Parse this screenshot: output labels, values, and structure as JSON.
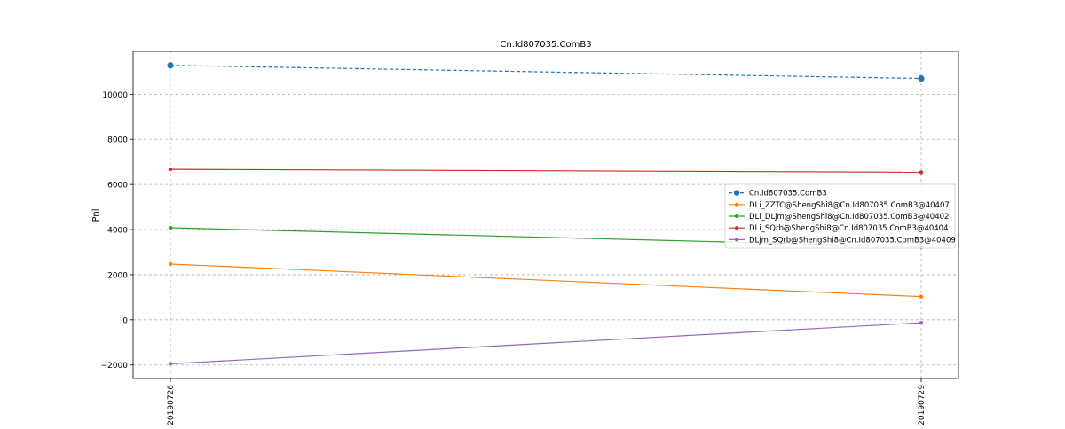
{
  "chart_data": {
    "type": "line",
    "title": "Cn.Id807035.ComB3",
    "xlabel": "",
    "ylabel": "Pnl",
    "categories": [
      "20190726",
      "20190729"
    ],
    "ylim": [
      -2600,
      11900
    ],
    "yticks": [
      -2000,
      0,
      2000,
      4000,
      6000,
      8000,
      10000
    ],
    "ytick_labels": [
      "−2000",
      "0",
      "2000",
      "4000",
      "6000",
      "8000",
      "10000"
    ],
    "grid": true,
    "legend_position": "center-right",
    "series": [
      {
        "name": "Cn.Id807035.ComB3",
        "values": [
          11280,
          10700
        ],
        "color": "#1f77b4",
        "dashed": true,
        "marker": "large-dot"
      },
      {
        "name": "DLi_ZZTC@ShengShi8@Cn.Id807035.ComB3@40407",
        "values": [
          2470,
          1030
        ],
        "color": "#ff7f0e",
        "dashed": false,
        "marker": "dot"
      },
      {
        "name": "DLi_DLjm@ShengShi8@Cn.Id807035.ComB3@40402",
        "values": [
          4080,
          3230
        ],
        "color": "#2ca02c",
        "dashed": false,
        "marker": "dot"
      },
      {
        "name": "DLi_SQrb@ShengShi8@Cn.Id807035.ComB3@40404",
        "values": [
          6670,
          6540
        ],
        "color": "#d62728",
        "dashed": false,
        "marker": "dot"
      },
      {
        "name": "DLjm_SQrb@ShengShi8@Cn.Id807035.ComB3@40409",
        "values": [
          -1950,
          -130
        ],
        "color": "#9467bd",
        "dashed": false,
        "marker": "dot"
      }
    ]
  }
}
